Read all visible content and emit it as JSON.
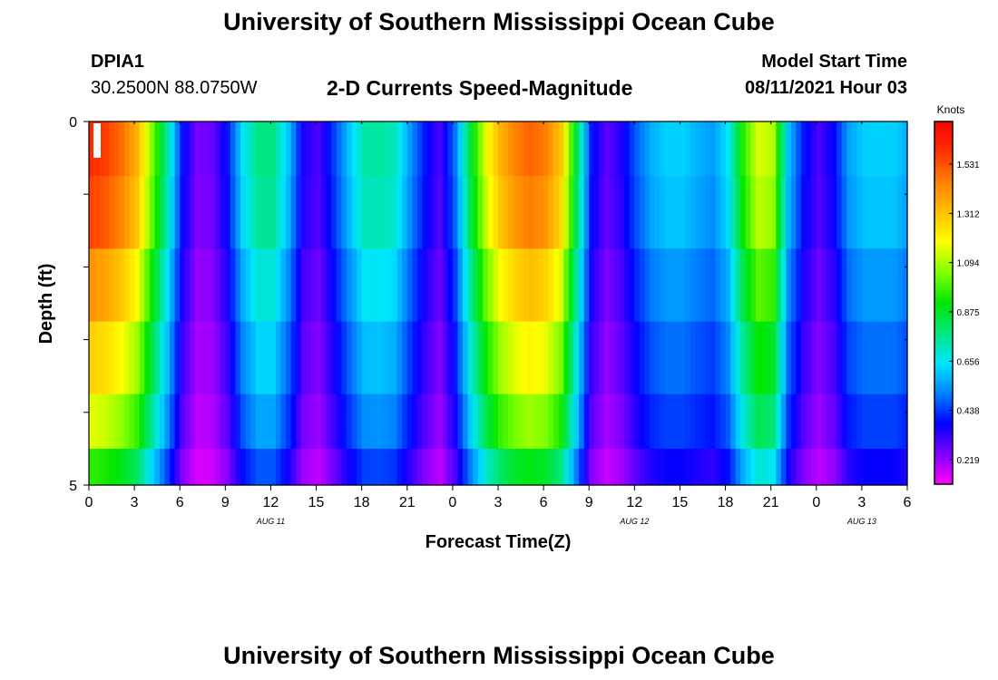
{
  "header": {
    "title": "University of Southern Mississippi Ocean Cube",
    "station": "DPIA1",
    "coords": "30.2500N  88.0750W",
    "subtitle": "2-D Currents Speed-Magnitude",
    "model_start_label": "Model Start Time",
    "model_start_value": "08/11/2021 Hour 03"
  },
  "footer": {
    "title": "University of Southern Mississippi Ocean Cube"
  },
  "colors": {
    "colormap": [
      "#ff00ff",
      "#8000ff",
      "#0000ff",
      "#0080ff",
      "#00e6ff",
      "#00e680",
      "#00e600",
      "#80ff00",
      "#ffff00",
      "#ffc000",
      "#ff8000",
      "#ff3000",
      "#ff0000"
    ]
  },
  "chart_data": {
    "type": "heatmap",
    "title": "2-D Currents Speed-Magnitude",
    "xlabel": "Forecast Time(Z)",
    "ylabel": "Depth (ft)",
    "x_hours": [
      0,
      1,
      2,
      3,
      4,
      5,
      6,
      7,
      8,
      9,
      10,
      11,
      12,
      13,
      14,
      15,
      16,
      17,
      18,
      19,
      20,
      21,
      22,
      23,
      24,
      25,
      26,
      27,
      28,
      29,
      30,
      31,
      32,
      33,
      34,
      35,
      36,
      37,
      38,
      39,
      40,
      41,
      42,
      43,
      44,
      45,
      46,
      47,
      48,
      49,
      50,
      51,
      52,
      53,
      54
    ],
    "x_ticks": [
      "0",
      "3",
      "6",
      "9",
      "12",
      "15",
      "18",
      "21",
      "0",
      "3",
      "6",
      "9",
      "12",
      "15",
      "18",
      "21",
      "0",
      "3",
      "6"
    ],
    "date_labels": [
      {
        "text": "AUG 11",
        "hour": 12
      },
      {
        "text": "AUG 12",
        "hour": 36
      },
      {
        "text": "AUG 13",
        "hour": 51
      }
    ],
    "y_range_ft": [
      0,
      5
    ],
    "y_tick_labels": [
      {
        "label": "0",
        "depth": 0
      },
      {
        "label": "5",
        "depth": 5
      }
    ],
    "depth_layers": [
      0.25,
      1.25,
      2.25,
      3.25,
      4.25,
      4.75
    ],
    "colorbar": {
      "units": "Knots",
      "range": [
        0.11,
        1.72
      ],
      "ticks": [
        "1.531",
        "1.312",
        "1.094",
        "0.875",
        "0.656",
        "0.438",
        "0.219"
      ],
      "tick_values": [
        1.531,
        1.312,
        1.094,
        0.875,
        0.656,
        0.438,
        0.219
      ]
    },
    "speed_profile_knots": [
      1.6,
      1.56,
      1.48,
      1.35,
      1.05,
      0.75,
      0.4,
      0.25,
      0.27,
      0.4,
      0.65,
      0.78,
      0.78,
      0.6,
      0.35,
      0.3,
      0.44,
      0.6,
      0.74,
      0.75,
      0.72,
      0.55,
      0.4,
      0.3,
      0.5,
      0.85,
      1.15,
      1.35,
      1.45,
      1.5,
      1.45,
      1.3,
      0.85,
      0.4,
      0.28,
      0.35,
      0.48,
      0.58,
      0.62,
      0.62,
      0.58,
      0.55,
      0.65,
      0.95,
      1.15,
      1.1,
      0.6,
      0.4,
      0.3,
      0.38,
      0.56,
      0.62,
      0.62,
      0.62,
      0.56
    ],
    "depth_factors": [
      1.0,
      0.97,
      0.88,
      0.8,
      0.72,
      0.6
    ]
  }
}
